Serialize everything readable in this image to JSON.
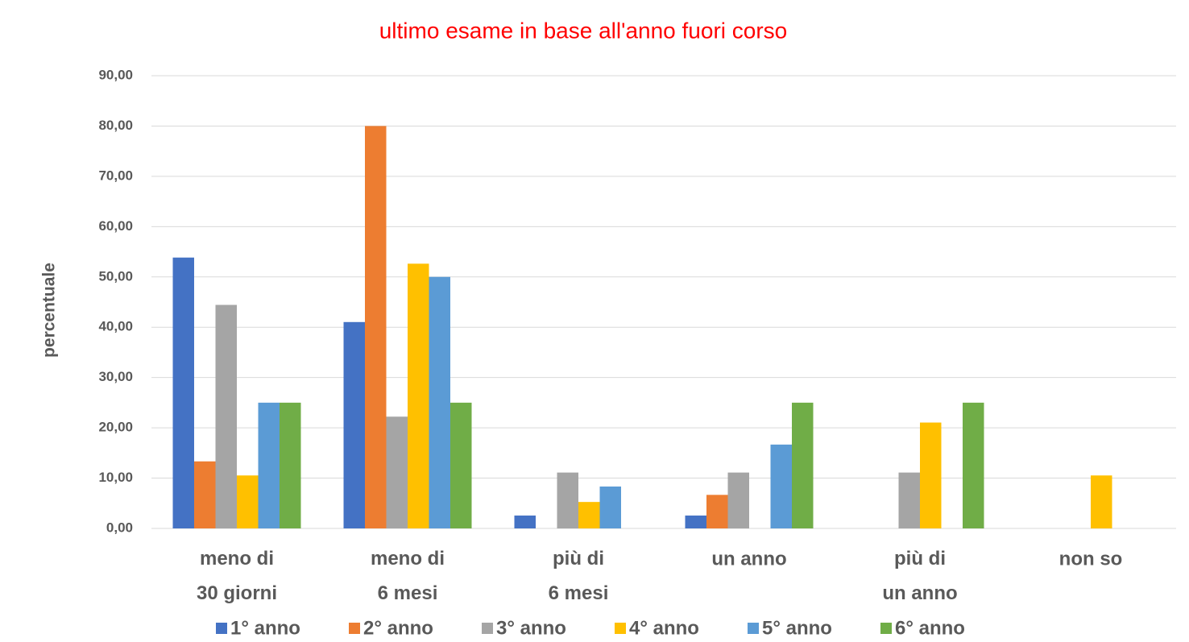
{
  "chart_data": {
    "type": "bar",
    "title": "ultimo esame in base all'anno fuori corso",
    "title_color": "#ff0000",
    "ylabel": "percentuale",
    "categories": [
      "meno di\n30 giorni",
      "meno di\n6 mesi",
      "più di\n6 mesi",
      "un anno",
      "più di\nun anno",
      "non so"
    ],
    "series": [
      {
        "name": "1° anno",
        "color": "#4472c4",
        "values": [
          53.85,
          41.03,
          2.56,
          2.56,
          0,
          0
        ]
      },
      {
        "name": "2° anno",
        "color": "#ed7d31",
        "values": [
          13.33,
          80,
          0,
          6.67,
          0,
          0
        ]
      },
      {
        "name": "3° anno",
        "color": "#a5a5a5",
        "values": [
          44.44,
          22.22,
          11.11,
          11.11,
          11.11,
          0
        ]
      },
      {
        "name": "4° anno",
        "color": "#ffc000",
        "values": [
          10.53,
          52.63,
          5.26,
          0,
          21.05,
          10.53
        ]
      },
      {
        "name": "5° anno",
        "color": "#5b9bd5",
        "values": [
          25,
          50,
          8.33,
          16.67,
          0,
          0
        ]
      },
      {
        "name": "6° anno",
        "color": "#70ad47",
        "values": [
          25,
          25,
          0,
          25,
          25,
          0
        ]
      }
    ],
    "ylim": [
      0,
      90
    ],
    "yticks": [
      {
        "value": 0,
        "label": "0,00"
      },
      {
        "value": 10,
        "label": "10,00"
      },
      {
        "value": 20,
        "label": "20,00"
      },
      {
        "value": 30,
        "label": "30,00"
      },
      {
        "value": 40,
        "label": "40,00"
      },
      {
        "value": 50,
        "label": "50,00"
      },
      {
        "value": 60,
        "label": "60,00"
      },
      {
        "value": 70,
        "label": "70,00"
      },
      {
        "value": 80,
        "label": "80,00"
      },
      {
        "value": 90,
        "label": "90,00"
      }
    ],
    "grid": true,
    "legend": "bottom"
  }
}
